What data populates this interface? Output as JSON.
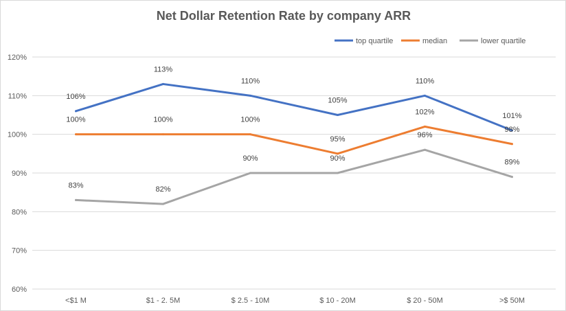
{
  "chart_data": {
    "type": "line",
    "title": "Net Dollar Retention Rate by company ARR",
    "categories": [
      "<$1 M",
      "$1 - 2. 5M",
      "$ 2.5 - 10M",
      "$ 10 - 20M",
      "$ 20 - 50M",
      ">$ 50M"
    ],
    "y_ticks": [
      "60%",
      "70%",
      "80%",
      "90%",
      "100%",
      "110%",
      "120%"
    ],
    "ylim": [
      60,
      120
    ],
    "grid": true,
    "legend_position": "top-right",
    "series": [
      {
        "name": "top quartile",
        "color": "#4472c4",
        "values": [
          106,
          113,
          110,
          105,
          110,
          101
        ],
        "labels": [
          "106%",
          "113%",
          "110%",
          "105%",
          "110%",
          "101%"
        ]
      },
      {
        "name": "median",
        "color": "#ed7d31",
        "values": [
          100,
          100,
          100,
          95,
          102,
          97.5
        ],
        "labels": [
          "100%",
          "100%",
          "100%",
          "95%",
          "102%",
          "98%"
        ]
      },
      {
        "name": "lower quartile",
        "color": "#a5a5a5",
        "values": [
          83,
          82,
          90,
          90,
          96,
          89
        ],
        "labels": [
          "83%",
          "82%",
          "90%",
          "90%",
          "96%",
          "89%"
        ]
      }
    ]
  }
}
